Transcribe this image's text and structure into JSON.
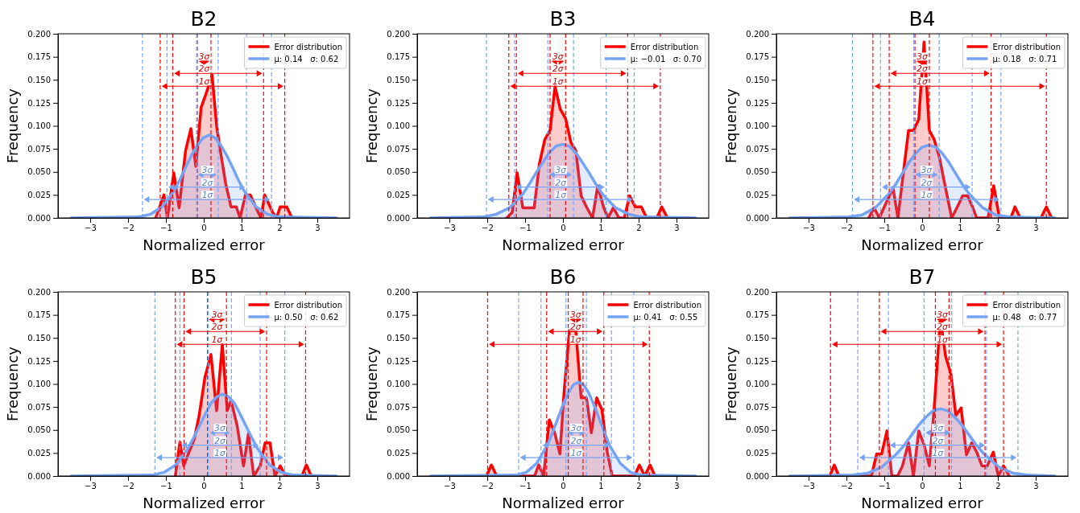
{
  "chart_data": [
    {
      "type": "area",
      "title": "B2",
      "xlabel": "Normalized error",
      "ylabel": "Frequency",
      "xlim": [
        -3.85,
        3.85
      ],
      "ylim": [
        0,
        0.2
      ],
      "xticks": [
        {
          "value": -3,
          "label": "−3"
        },
        {
          "value": -2,
          "label": "−2"
        },
        {
          "value": -1,
          "label": "−1"
        },
        0,
        1,
        2,
        3
      ],
      "yticks": [
        {
          "value": 0,
          "label": "0.000"
        },
        0.025,
        {
          "value": 0.05,
          "label": "0.050"
        },
        0.075,
        {
          "value": 0.1,
          "label": "0.100"
        },
        0.125,
        {
          "value": 0.15,
          "label": "0.150"
        },
        0.175,
        {
          "value": 0.2,
          "label": "0.200"
        }
      ],
      "legend": "top right",
      "series": [
        {
          "name": "Error distribution",
          "color": "#ff0000",
          "x": [
            -1.27,
            -1.05,
            -0.96,
            -0.79,
            -0.65,
            -0.48,
            -0.34,
            -0.21,
            -0.07,
            0.07,
            0.22,
            0.34,
            0.45,
            0.58,
            0.72,
            0.86,
            0.96,
            1.1,
            1.23,
            1.37,
            1.51,
            1.61,
            1.82,
            1.92,
            2.02,
            2.19,
            2.33
          ],
          "values": [
            0,
            0.025,
            0,
            0.049,
            0.011,
            0.073,
            0.097,
            0.056,
            0.12,
            0.136,
            0.155,
            0.1,
            0.07,
            0.037,
            0.012,
            0.012,
            0,
            0.025,
            0.025,
            0.012,
            0,
            0.025,
            0.006,
            0,
            0.012,
            0.012,
            0
          ]
        },
        {
          "name": "μ: 0.14   σ: 0.62",
          "color": "#75a4f5",
          "x": [
            -3.5,
            -1.72,
            -1.41,
            -1.1,
            -0.79,
            -0.635,
            -0.48,
            -0.325,
            -0.17,
            -0.015,
            0.14,
            0.295,
            0.45,
            0.605,
            0.76,
            0.915,
            1.07,
            1.38,
            1.69,
            2.0,
            3.5
          ],
          "values": [
            0,
            0.001,
            0.004,
            0.012,
            0.029,
            0.041,
            0.055,
            0.068,
            0.079,
            0.087,
            0.09,
            0.087,
            0.079,
            0.068,
            0.055,
            0.041,
            0.029,
            0.012,
            0.004,
            0.001,
            0
          ]
        }
      ],
      "ref_lines": [
        {
          "axis": "x",
          "value": -1.15,
          "color": "#ff0000",
          "line_style": "dashed"
        },
        {
          "axis": "x",
          "value": 2.14,
          "color": "#ff0000",
          "line_style": "dashed"
        },
        {
          "axis": "x",
          "value": -0.82,
          "color": "#ff0000",
          "line_style": "dashed"
        },
        {
          "axis": "x",
          "value": 1.58,
          "color": "#ff0000",
          "line_style": "dashed"
        },
        {
          "axis": "x",
          "value": -0.17,
          "color": "#ff0000",
          "line_style": "dashed"
        },
        {
          "axis": "x",
          "value": 0.19,
          "color": "#ff0000",
          "line_style": "dashed"
        },
        {
          "axis": "x",
          "value": -1.62,
          "color": "#75a4f5",
          "line_style": "dashed"
        },
        {
          "axis": "x",
          "value": 1.79,
          "color": "#75a4f5",
          "line_style": "dashed"
        },
        {
          "axis": "x",
          "value": -0.97,
          "color": "#75a4f5",
          "line_style": "dashed"
        },
        {
          "axis": "x",
          "value": 1.13,
          "color": "#75a4f5",
          "line_style": "dashed"
        },
        {
          "axis": "x",
          "value": -0.19,
          "color": "#75a4f5",
          "line_style": "dashed"
        },
        {
          "axis": "x",
          "value": 0.38,
          "color": "#75a4f5",
          "line_style": "dashed"
        }
      ],
      "annotations": [
        "1σ",
        "2σ",
        "3σ",
        "1σ",
        "2σ",
        "3σ"
      ]
    },
    {
      "type": "area",
      "title": "B3",
      "xlabel": "Normalized error",
      "ylabel": "Frequency",
      "xlim": [
        -3.85,
        3.85
      ],
      "ylim": [
        0,
        0.2
      ],
      "xticks": [
        {
          "value": -3,
          "label": "−3"
        },
        {
          "value": -2,
          "label": "−2"
        },
        {
          "value": -1,
          "label": "−1"
        },
        0,
        1,
        2,
        3
      ],
      "yticks": [
        {
          "value": 0,
          "label": "0.000"
        },
        0.025,
        {
          "value": 0.05,
          "label": "0.050"
        },
        0.075,
        {
          "value": 0.1,
          "label": "0.100"
        },
        0.125,
        {
          "value": 0.15,
          "label": "0.150"
        },
        0.175,
        {
          "value": 0.2,
          "label": "0.200"
        }
      ],
      "legend": "top right",
      "series": [
        {
          "name": "Error distribution",
          "color": "#ff0000",
          "x": [
            -1.48,
            -1.34,
            -1.21,
            -1.06,
            -0.76,
            -0.62,
            -0.48,
            -0.34,
            -0.21,
            -0.07,
            0.07,
            0.21,
            0.34,
            0.48,
            0.62,
            0.78,
            0.92,
            1.07,
            1.19,
            1.33,
            1.48,
            1.62,
            1.76,
            1.91,
            2.07,
            2.21,
            2.48,
            2.61,
            2.76
          ],
          "values": [
            0,
            0.006,
            0.049,
            0.011,
            0.011,
            0.059,
            0.085,
            0.095,
            0.143,
            0.118,
            0.108,
            0.082,
            0.073,
            0.024,
            0.012,
            0,
            0.035,
            0.012,
            0,
            0.011,
            0,
            0,
            0.024,
            0.012,
            0.012,
            0,
            0,
            0.012,
            0
          ]
        },
        {
          "name": "μ: −0.01   σ: 0.70",
          "color": "#75a4f5",
          "x": [
            -3.5,
            -2.11,
            -1.76,
            -1.41,
            -1.06,
            -0.885,
            -0.71,
            -0.535,
            -0.36,
            -0.185,
            -0.01,
            0.165,
            0.34,
            0.515,
            0.69,
            0.865,
            1.04,
            1.39,
            1.74,
            2.09,
            3.5
          ],
          "values": [
            0,
            0.001,
            0.004,
            0.011,
            0.026,
            0.037,
            0.049,
            0.06,
            0.071,
            0.078,
            0.08,
            0.078,
            0.071,
            0.06,
            0.049,
            0.037,
            0.026,
            0.011,
            0.004,
            0.001,
            0
          ]
        }
      ],
      "ref_lines": [
        {
          "axis": "x",
          "value": -1.43,
          "color": "#ff0000",
          "line_style": "dashed"
        },
        {
          "axis": "x",
          "value": 2.57,
          "color": "#ff0000",
          "line_style": "dashed"
        },
        {
          "axis": "x",
          "value": -1.23,
          "color": "#ff0000",
          "line_style": "dashed"
        },
        {
          "axis": "x",
          "value": 1.71,
          "color": "#ff0000",
          "line_style": "dashed"
        },
        {
          "axis": "x",
          "value": -0.34,
          "color": "#ff0000",
          "line_style": "dashed"
        },
        {
          "axis": "x",
          "value": 0.07,
          "color": "#ff0000",
          "line_style": "dashed"
        },
        {
          "axis": "x",
          "value": -2.02,
          "color": "#75a4f5",
          "line_style": "dashed"
        },
        {
          "axis": "x",
          "value": 1.88,
          "color": "#75a4f5",
          "line_style": "dashed"
        },
        {
          "axis": "x",
          "value": -1.28,
          "color": "#75a4f5",
          "line_style": "dashed"
        },
        {
          "axis": "x",
          "value": 1.14,
          "color": "#75a4f5",
          "line_style": "dashed"
        },
        {
          "axis": "x",
          "value": -0.4,
          "color": "#75a4f5",
          "line_style": "dashed"
        },
        {
          "axis": "x",
          "value": 0.28,
          "color": "#75a4f5",
          "line_style": "dashed"
        }
      ],
      "annotations": [
        "1σ",
        "2σ",
        "3σ",
        "1σ",
        "2σ",
        "3σ"
      ]
    },
    {
      "type": "area",
      "title": "B4",
      "xlabel": "Normalized error",
      "ylabel": "Frequency",
      "xlim": [
        -3.85,
        3.85
      ],
      "ylim": [
        0,
        0.2
      ],
      "xticks": [
        {
          "value": -3,
          "label": "−3"
        },
        {
          "value": -2,
          "label": "−2"
        },
        {
          "value": -1,
          "label": "−1"
        },
        0,
        1,
        2,
        3
      ],
      "yticks": [
        {
          "value": 0,
          "label": "0.000"
        },
        0.025,
        {
          "value": 0.05,
          "label": "0.050"
        },
        0.075,
        {
          "value": 0.1,
          "label": "0.100"
        },
        0.125,
        {
          "value": 0.15,
          "label": "0.150"
        },
        0.175,
        {
          "value": 0.2,
          "label": "0.200"
        }
      ],
      "legend": "top right",
      "series": [
        {
          "name": "Error distribution",
          "color": "#ff0000",
          "x": [
            -1.41,
            -1.27,
            -1.13,
            -0.77,
            -0.64,
            -0.36,
            -0.23,
            -0.09,
            0.05,
            0.19,
            0.32,
            0.46,
            0.6,
            0.78,
            0.93,
            1.07,
            1.2,
            1.33,
            1.44,
            1.74,
            1.89,
            2.04,
            2.34,
            2.45,
            2.59,
            3.14,
            3.28,
            3.42
          ],
          "values": [
            0,
            0.011,
            0,
            0.033,
            0,
            0.095,
            0.095,
            0.107,
            0.191,
            0.095,
            0.085,
            0.065,
            0.036,
            0,
            0.012,
            0.024,
            0.024,
            0.012,
            0,
            0,
            0.035,
            0,
            0,
            0.012,
            0,
            0,
            0.012,
            0
          ]
        },
        {
          "name": "μ: 0.18   σ: 0.71",
          "color": "#75a4f5",
          "x": [
            -3.5,
            -1.95,
            -1.595,
            -1.24,
            -0.885,
            -0.708,
            -0.53,
            -0.353,
            -0.175,
            0.003,
            0.18,
            0.358,
            0.535,
            0.713,
            0.89,
            1.068,
            1.245,
            1.6,
            1.955,
            2.31,
            3.5
          ],
          "values": [
            0,
            0.001,
            0.003,
            0.011,
            0.026,
            0.036,
            0.048,
            0.06,
            0.07,
            0.077,
            0.079,
            0.077,
            0.07,
            0.06,
            0.048,
            0.036,
            0.026,
            0.011,
            0.003,
            0.001,
            0
          ]
        }
      ],
      "ref_lines": [
        {
          "axis": "x",
          "value": -1.3,
          "color": "#ff0000",
          "line_style": "dashed"
        },
        {
          "axis": "x",
          "value": 3.28,
          "color": "#ff0000",
          "line_style": "dashed"
        },
        {
          "axis": "x",
          "value": -0.87,
          "color": "#ff0000",
          "line_style": "dashed"
        },
        {
          "axis": "x",
          "value": 1.82,
          "color": "#ff0000",
          "line_style": "dashed"
        },
        {
          "axis": "x",
          "value": -0.19,
          "color": "#ff0000",
          "line_style": "dashed"
        },
        {
          "axis": "x",
          "value": 0.19,
          "color": "#ff0000",
          "line_style": "dashed"
        },
        {
          "axis": "x",
          "value": -1.84,
          "color": "#75a4f5",
          "line_style": "dashed"
        },
        {
          "axis": "x",
          "value": 2.08,
          "color": "#75a4f5",
          "line_style": "dashed"
        },
        {
          "axis": "x",
          "value": -1.1,
          "color": "#75a4f5",
          "line_style": "dashed"
        },
        {
          "axis": "x",
          "value": 1.32,
          "color": "#75a4f5",
          "line_style": "dashed"
        },
        {
          "axis": "x",
          "value": -0.22,
          "color": "#75a4f5",
          "line_style": "dashed"
        },
        {
          "axis": "x",
          "value": 0.45,
          "color": "#75a4f5",
          "line_style": "dashed"
        }
      ],
      "annotations": [
        "1σ",
        "2σ",
        "3σ",
        "1σ",
        "2σ",
        "3σ"
      ]
    },
    {
      "type": "area",
      "title": "B5",
      "xlabel": "Normalized error",
      "ylabel": "Frequency",
      "xlim": [
        -3.85,
        3.85
      ],
      "ylim": [
        0,
        0.2
      ],
      "xticks": [
        {
          "value": -3,
          "label": "−3"
        },
        {
          "value": -2,
          "label": "−2"
        },
        {
          "value": -1,
          "label": "−1"
        },
        0,
        1,
        2,
        3
      ],
      "yticks": [
        {
          "value": 0,
          "label": "0.000"
        },
        0.025,
        {
          "value": 0.05,
          "label": "0.050"
        },
        0.075,
        {
          "value": 0.1,
          "label": "0.100"
        },
        0.125,
        {
          "value": 0.15,
          "label": "0.150"
        },
        0.175,
        {
          "value": 0.2,
          "label": "0.200"
        }
      ],
      "legend": "top right",
      "series": [
        {
          "name": "Error distribution",
          "color": "#ff0000",
          "x": [
            -0.75,
            -0.63,
            -0.53,
            -0.39,
            -0.25,
            -0.12,
            0.03,
            0.19,
            0.34,
            0.49,
            0.62,
            0.72,
            0.88,
            1.05,
            1.18,
            1.32,
            1.49,
            1.62,
            1.75,
            1.88,
            2.02,
            2.16,
            2.59,
            2.71,
            2.84
          ],
          "values": [
            0,
            0.037,
            0.011,
            0.026,
            0.04,
            0.066,
            0.107,
            0.132,
            0.071,
            0.143,
            0.071,
            0.082,
            0.055,
            0.011,
            0.046,
            0,
            0.011,
            0.036,
            0.036,
            0,
            0.011,
            0,
            0,
            0.012,
            0
          ]
        },
        {
          "name": "μ: 0.50   σ: 0.62",
          "color": "#75a4f5",
          "x": [
            -3.5,
            -1.36,
            -1.05,
            -0.74,
            -0.43,
            -0.275,
            -0.12,
            0.035,
            0.19,
            0.345,
            0.5,
            0.655,
            0.81,
            0.965,
            1.12,
            1.275,
            1.43,
            1.74,
            2.05,
            2.36,
            3.5
          ],
          "values": [
            0,
            0.001,
            0.004,
            0.012,
            0.029,
            0.041,
            0.054,
            0.067,
            0.079,
            0.086,
            0.089,
            0.086,
            0.079,
            0.067,
            0.054,
            0.041,
            0.029,
            0.012,
            0.004,
            0.001,
            0
          ]
        }
      ],
      "ref_lines": [
        {
          "axis": "x",
          "value": -0.75,
          "color": "#ff0000",
          "line_style": "dashed"
        },
        {
          "axis": "x",
          "value": 2.69,
          "color": "#ff0000",
          "line_style": "dashed"
        },
        {
          "axis": "x",
          "value": -0.52,
          "color": "#ff0000",
          "line_style": "dashed"
        },
        {
          "axis": "x",
          "value": 1.66,
          "color": "#ff0000",
          "line_style": "dashed"
        },
        {
          "axis": "x",
          "value": 0.1,
          "color": "#ff0000",
          "line_style": "dashed"
        },
        {
          "axis": "x",
          "value": 0.6,
          "color": "#ff0000",
          "line_style": "dashed"
        },
        {
          "axis": "x",
          "value": -1.29,
          "color": "#75a4f5",
          "line_style": "dashed"
        },
        {
          "axis": "x",
          "value": 2.14,
          "color": "#75a4f5",
          "line_style": "dashed"
        },
        {
          "axis": "x",
          "value": -0.63,
          "color": "#75a4f5",
          "line_style": "dashed"
        },
        {
          "axis": "x",
          "value": 1.49,
          "color": "#75a4f5",
          "line_style": "dashed"
        },
        {
          "axis": "x",
          "value": 0.12,
          "color": "#75a4f5",
          "line_style": "dashed"
        },
        {
          "axis": "x",
          "value": 0.73,
          "color": "#75a4f5",
          "line_style": "dashed"
        }
      ],
      "annotations": [
        "1σ",
        "2σ",
        "3σ",
        "1σ",
        "2σ",
        "3σ"
      ]
    },
    {
      "type": "area",
      "title": "B6",
      "xlabel": "Normalized error",
      "ylabel": "Frequency",
      "xlim": [
        -3.85,
        3.85
      ],
      "ylim": [
        0,
        0.2
      ],
      "xticks": [
        {
          "value": -3,
          "label": "−3"
        },
        {
          "value": -2,
          "label": "−2"
        },
        {
          "value": -1,
          "label": "−1"
        },
        0,
        1,
        2,
        3
      ],
      "yticks": [
        {
          "value": 0,
          "label": "0.000"
        },
        0.025,
        {
          "value": 0.05,
          "label": "0.050"
        },
        0.075,
        {
          "value": 0.1,
          "label": "0.100"
        },
        0.125,
        {
          "value": 0.15,
          "label": "0.150"
        },
        0.175,
        {
          "value": 0.2,
          "label": "0.200"
        }
      ],
      "legend": "top right",
      "series": [
        {
          "name": "Error distribution",
          "color": "#ff0000",
          "x": [
            -2.02,
            -1.89,
            -1.75,
            -0.75,
            -0.64,
            -0.51,
            -0.36,
            -0.22,
            -0.08,
            0.03,
            0.17,
            0.34,
            0.48,
            0.62,
            0.75,
            0.89,
            1.03,
            1.17,
            1.3,
            1.89,
            2.02,
            2.16,
            2.3,
            2.43
          ],
          "values": [
            0,
            0.012,
            0,
            0,
            0.012,
            0,
            0.061,
            0.047,
            0.024,
            0.091,
            0.158,
            0.158,
            0.085,
            0.085,
            0.047,
            0.085,
            0.072,
            0.026,
            0,
            0,
            0.012,
            0,
            0.012,
            0
          ]
        },
        {
          "name": "μ: 0.41   σ: 0.55",
          "color": "#75a4f5",
          "x": [
            -3.5,
            -1.24,
            -0.965,
            -0.69,
            -0.415,
            -0.278,
            -0.14,
            -0.003,
            0.135,
            0.273,
            0.41,
            0.548,
            0.685,
            0.823,
            0.96,
            1.098,
            1.235,
            1.51,
            1.785,
            2.06,
            3.5
          ],
          "values": [
            0,
            0.001,
            0.004,
            0.014,
            0.033,
            0.047,
            0.062,
            0.077,
            0.09,
            0.099,
            0.102,
            0.099,
            0.09,
            0.077,
            0.062,
            0.047,
            0.033,
            0.014,
            0.004,
            0.001,
            0
          ]
        }
      ],
      "ref_lines": [
        {
          "axis": "x",
          "value": -1.99,
          "color": "#ff0000",
          "line_style": "dashed"
        },
        {
          "axis": "x",
          "value": 2.28,
          "color": "#ff0000",
          "line_style": "dashed"
        },
        {
          "axis": "x",
          "value": -0.43,
          "color": "#ff0000",
          "line_style": "dashed"
        },
        {
          "axis": "x",
          "value": 1.08,
          "color": "#ff0000",
          "line_style": "dashed"
        },
        {
          "axis": "x",
          "value": 0.14,
          "color": "#ff0000",
          "line_style": "dashed"
        },
        {
          "axis": "x",
          "value": 0.53,
          "color": "#ff0000",
          "line_style": "dashed"
        },
        {
          "axis": "x",
          "value": -1.17,
          "color": "#75a4f5",
          "line_style": "dashed"
        },
        {
          "axis": "x",
          "value": 1.87,
          "color": "#75a4f5",
          "line_style": "dashed"
        },
        {
          "axis": "x",
          "value": -0.58,
          "color": "#75a4f5",
          "line_style": "dashed"
        },
        {
          "axis": "x",
          "value": 1.28,
          "color": "#75a4f5",
          "line_style": "dashed"
        },
        {
          "axis": "x",
          "value": 0.08,
          "color": "#75a4f5",
          "line_style": "dashed"
        },
        {
          "axis": "x",
          "value": 0.62,
          "color": "#75a4f5",
          "line_style": "dashed"
        }
      ],
      "annotations": [
        "1σ",
        "2σ",
        "3σ",
        "1σ",
        "2σ",
        "3σ"
      ]
    },
    {
      "type": "area",
      "title": "B7",
      "xlabel": "Normalized error",
      "ylabel": "Frequency",
      "xlim": [
        -3.85,
        3.85
      ],
      "ylim": [
        0,
        0.2
      ],
      "xticks": [
        {
          "value": -3,
          "label": "−3"
        },
        {
          "value": -2,
          "label": "−2"
        },
        {
          "value": -1,
          "label": "−1"
        },
        0,
        1,
        2,
        3
      ],
      "yticks": [
        {
          "value": 0,
          "label": "0.000"
        },
        0.025,
        {
          "value": 0.05,
          "label": "0.050"
        },
        0.075,
        {
          "value": 0.1,
          "label": "0.100"
        },
        0.125,
        {
          "value": 0.15,
          "label": "0.150"
        },
        0.175,
        {
          "value": 0.2,
          "label": "0.200"
        }
      ],
      "legend": "top right",
      "series": [
        {
          "name": "Error distribution",
          "color": "#ff0000",
          "x": [
            -2.44,
            -2.32,
            -2.2,
            -1.34,
            -1.2,
            -1.07,
            -0.93,
            -0.8,
            -0.65,
            -0.52,
            -0.36,
            -0.23,
            -0.09,
            0.05,
            0.19,
            0.32,
            0.48,
            0.62,
            0.76,
            0.89,
            1.03,
            1.17,
            1.31,
            1.44,
            1.58,
            1.72,
            1.88,
            2.01,
            2.15,
            2.3
          ],
          "values": [
            0,
            0.012,
            0,
            0,
            0.024,
            0.024,
            0.049,
            0,
            0,
            0.011,
            0.036,
            0,
            0.049,
            0.034,
            0.011,
            0.075,
            0.171,
            0.13,
            0.111,
            0.066,
            0.074,
            0.023,
            0.036,
            0.026,
            0.011,
            0.011,
            0.026,
            0,
            0.011,
            0
          ]
        },
        {
          "name": "μ: 0.48   σ: 0.77",
          "color": "#75a4f5",
          "x": [
            -3.5,
            -1.83,
            -1.445,
            -1.06,
            -0.675,
            -0.483,
            -0.29,
            -0.098,
            0.095,
            0.288,
            0.48,
            0.673,
            0.865,
            1.058,
            1.25,
            1.443,
            1.635,
            2.02,
            2.405,
            2.79,
            3.5
          ],
          "values": [
            0,
            0.001,
            0.003,
            0.01,
            0.024,
            0.033,
            0.044,
            0.055,
            0.064,
            0.071,
            0.073,
            0.071,
            0.064,
            0.055,
            0.044,
            0.033,
            0.024,
            0.01,
            0.003,
            0.001,
            0
          ]
        }
      ],
      "ref_lines": [
        {
          "axis": "x",
          "value": -2.42,
          "color": "#ff0000",
          "line_style": "dashed"
        },
        {
          "axis": "x",
          "value": 2.15,
          "color": "#ff0000",
          "line_style": "dashed"
        },
        {
          "axis": "x",
          "value": -1.13,
          "color": "#ff0000",
          "line_style": "dashed"
        },
        {
          "axis": "x",
          "value": 1.66,
          "color": "#ff0000",
          "line_style": "dashed"
        },
        {
          "axis": "x",
          "value": 0.35,
          "color": "#ff0000",
          "line_style": "dashed"
        },
        {
          "axis": "x",
          "value": 0.71,
          "color": "#ff0000",
          "line_style": "dashed"
        },
        {
          "axis": "x",
          "value": -1.7,
          "color": "#75a4f5",
          "line_style": "dashed"
        },
        {
          "axis": "x",
          "value": 2.53,
          "color": "#75a4f5",
          "line_style": "dashed"
        },
        {
          "axis": "x",
          "value": -0.89,
          "color": "#75a4f5",
          "line_style": "dashed"
        },
        {
          "axis": "x",
          "value": 1.7,
          "color": "#75a4f5",
          "line_style": "dashed"
        },
        {
          "axis": "x",
          "value": 0.05,
          "color": "#75a4f5",
          "line_style": "dashed"
        },
        {
          "axis": "x",
          "value": 0.78,
          "color": "#75a4f5",
          "line_style": "dashed"
        }
      ],
      "annotations": [
        "1σ",
        "2σ",
        "3σ",
        "1σ",
        "2σ",
        "3σ"
      ]
    }
  ]
}
